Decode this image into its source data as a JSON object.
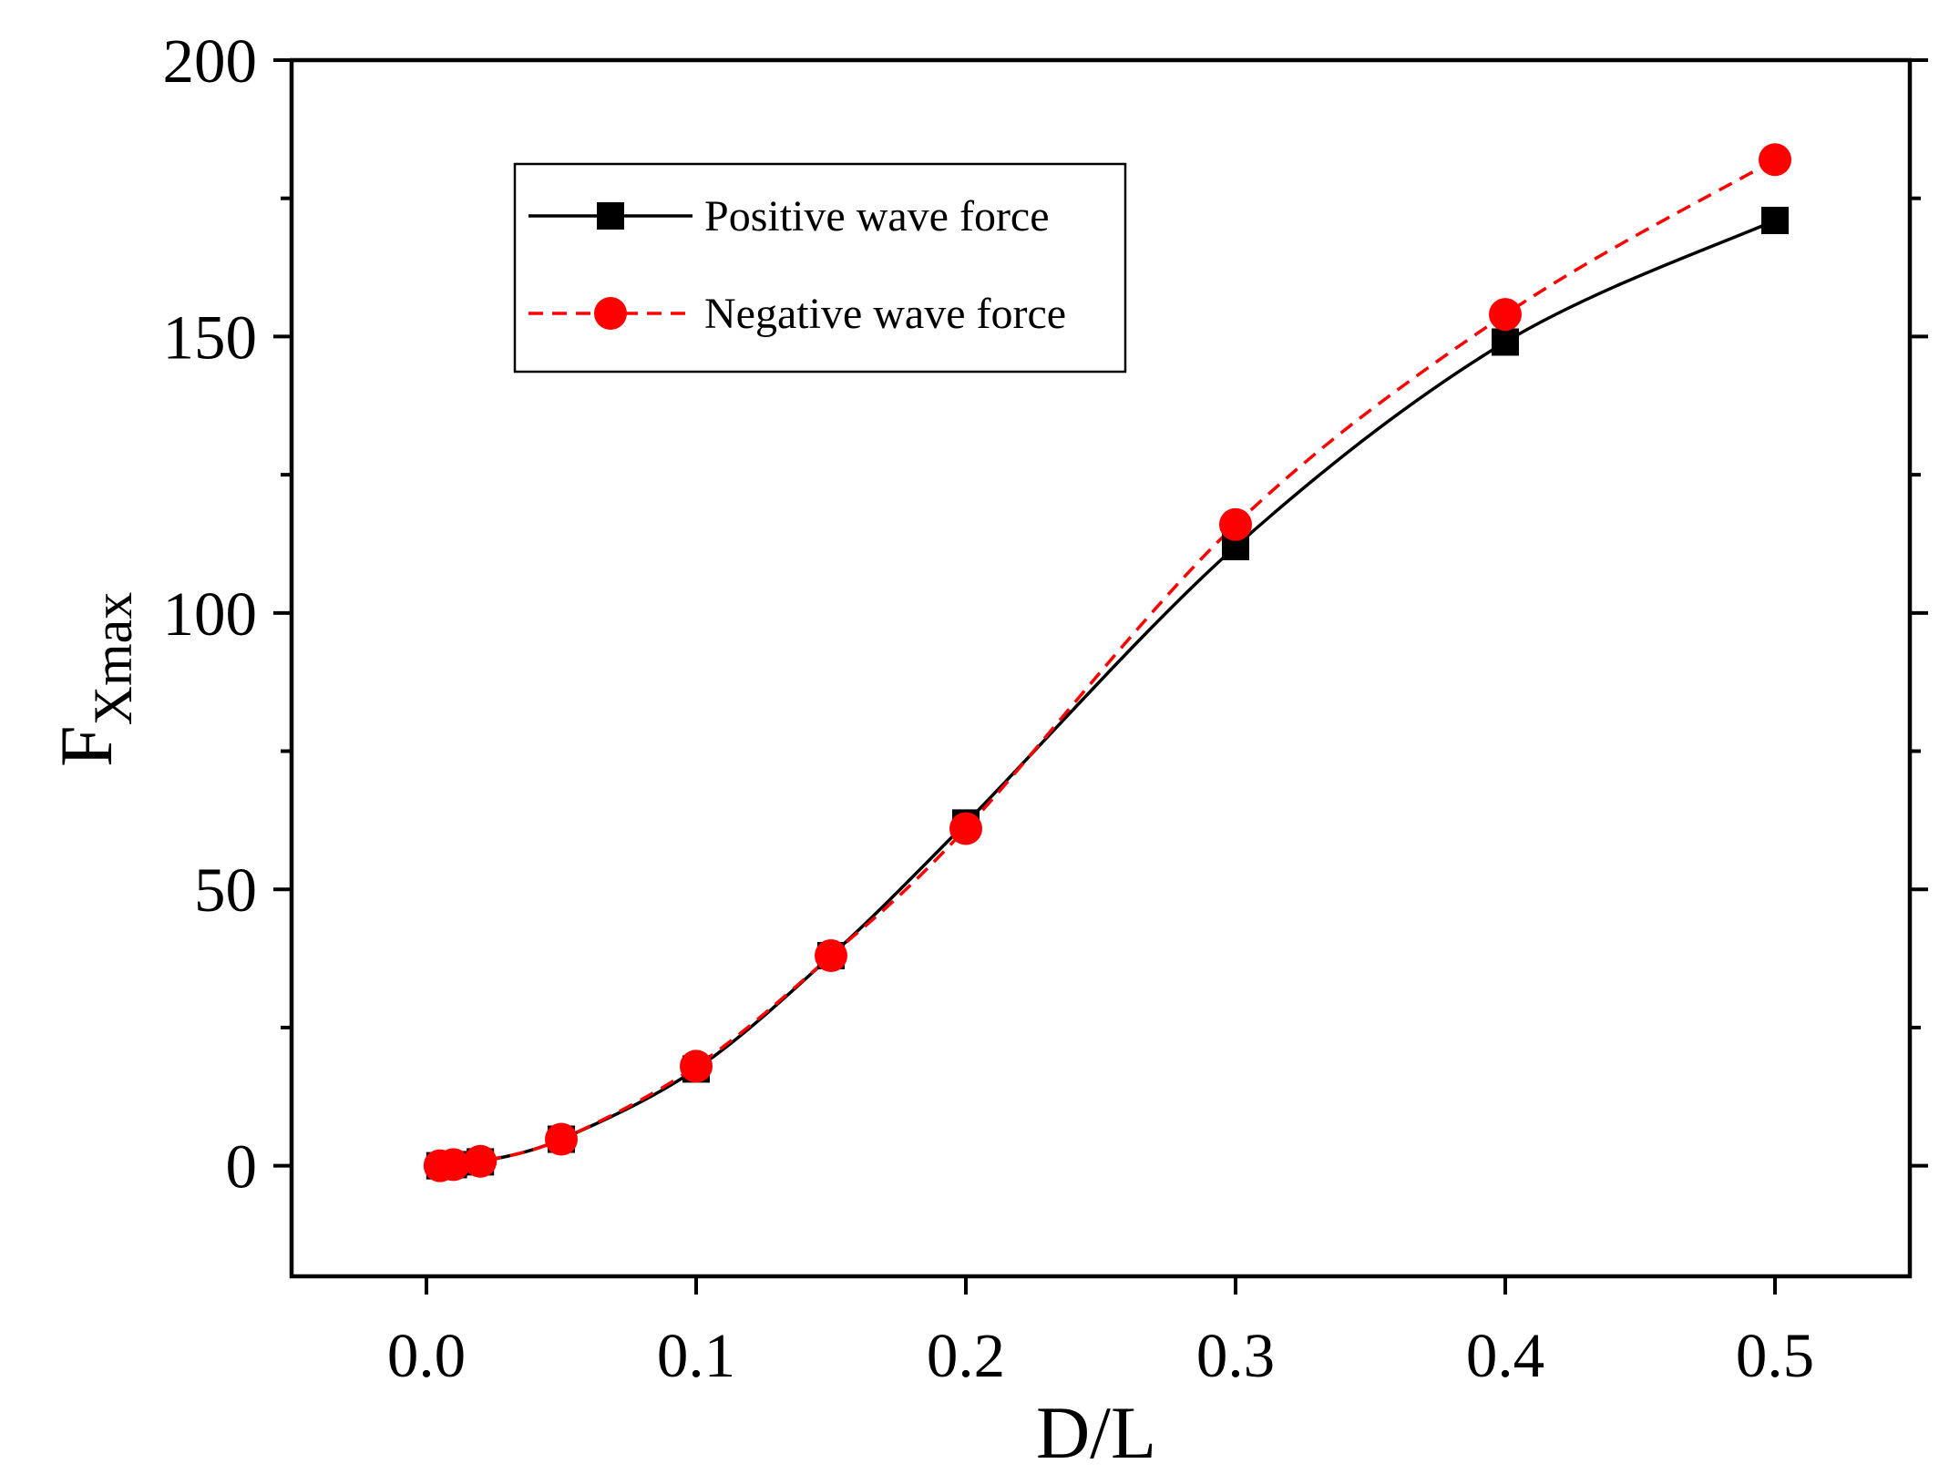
{
  "chart_data": {
    "type": "line",
    "title": "",
    "xlabel": "D/L",
    "ylabel": {
      "main": "F",
      "subscript": "Xmax"
    },
    "xlim": [
      -0.05,
      0.55
    ],
    "ylim": [
      -20,
      200
    ],
    "xticks": [
      0.0,
      0.1,
      0.2,
      0.3,
      0.4,
      0.5
    ],
    "xtick_labels": [
      "0.0",
      "0.1",
      "0.2",
      "0.3",
      "0.4",
      "0.5"
    ],
    "yticks": [
      0,
      50,
      100,
      150,
      200
    ],
    "ytick_labels": [
      "0",
      "50",
      "100",
      "150",
      "200"
    ],
    "legend_position": "top-left",
    "series": [
      {
        "name": "Positive wave force",
        "color": "#000000",
        "marker": "square",
        "line": "solid",
        "x": [
          0.005,
          0.01,
          0.02,
          0.05,
          0.1,
          0.15,
          0.2,
          0.3,
          0.4,
          0.5
        ],
        "y": [
          0,
          0.2,
          0.7,
          4.8,
          17.5,
          38,
          62,
          112,
          149,
          171
        ]
      },
      {
        "name": "Negative wave force",
        "color": "#ff0000",
        "marker": "circle",
        "line": "dashed",
        "x": [
          0.005,
          0.01,
          0.02,
          0.05,
          0.1,
          0.15,
          0.2,
          0.3,
          0.4,
          0.5
        ],
        "y": [
          0,
          0.2,
          0.8,
          4.8,
          18,
          38,
          61,
          116,
          154,
          182
        ]
      }
    ]
  }
}
